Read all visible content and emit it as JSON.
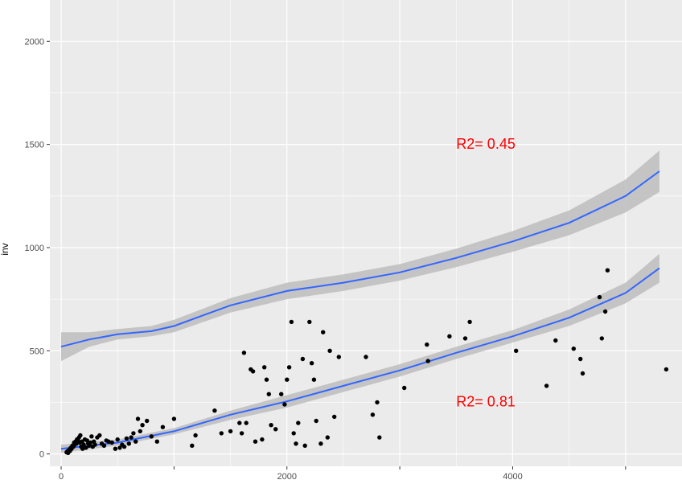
{
  "chart_data": {
    "type": "scatter",
    "title": "",
    "xlabel": "",
    "ylabel": "inv",
    "xlim": [
      -100,
      5500
    ],
    "ylim": [
      -60,
      2200
    ],
    "x_ticks": [
      0,
      1000,
      2000,
      3000,
      4000,
      5000
    ],
    "x_tick_labels": [
      "0",
      "",
      "2000",
      "",
      "4000",
      ""
    ],
    "y_ticks": [
      0,
      500,
      1000,
      1500,
      2000
    ],
    "y_tick_labels": [
      "0",
      "500",
      "1000",
      "1500",
      "2000"
    ],
    "grid": true,
    "colors": {
      "panel": "#ebebeb",
      "grid_major": "#ffffff",
      "points": "#000000",
      "smooth_line": "#3366ff",
      "ribbon": "#bdbdbd",
      "annotation": "#ff0000"
    },
    "points": [
      [
        48,
        8
      ],
      [
        55,
        12
      ],
      [
        62,
        5
      ],
      [
        70,
        20
      ],
      [
        78,
        15
      ],
      [
        85,
        30
      ],
      [
        92,
        25
      ],
      [
        100,
        40
      ],
      [
        108,
        35
      ],
      [
        115,
        55
      ],
      [
        120,
        45
      ],
      [
        128,
        60
      ],
      [
        135,
        50
      ],
      [
        140,
        70
      ],
      [
        150,
        65
      ],
      [
        158,
        80
      ],
      [
        165,
        55
      ],
      [
        170,
        90
      ],
      [
        178,
        35
      ],
      [
        185,
        60
      ],
      [
        190,
        25
      ],
      [
        200,
        45
      ],
      [
        210,
        70
      ],
      [
        220,
        30
      ],
      [
        230,
        65
      ],
      [
        240,
        50
      ],
      [
        250,
        40
      ],
      [
        260,
        55
      ],
      [
        270,
        85
      ],
      [
        280,
        35
      ],
      [
        290,
        60
      ],
      [
        300,
        45
      ],
      [
        320,
        80
      ],
      [
        340,
        90
      ],
      [
        360,
        50
      ],
      [
        380,
        40
      ],
      [
        400,
        65
      ],
      [
        420,
        60
      ],
      [
        450,
        55
      ],
      [
        480,
        25
      ],
      [
        500,
        70
      ],
      [
        520,
        30
      ],
      [
        540,
        45
      ],
      [
        560,
        35
      ],
      [
        580,
        75
      ],
      [
        600,
        50
      ],
      [
        620,
        80
      ],
      [
        640,
        100
      ],
      [
        660,
        60
      ],
      [
        680,
        170
      ],
      [
        700,
        110
      ],
      [
        720,
        140
      ],
      [
        760,
        160
      ],
      [
        800,
        85
      ],
      [
        850,
        60
      ],
      [
        900,
        130
      ],
      [
        1000,
        170
      ],
      [
        1160,
        40
      ],
      [
        1190,
        90
      ],
      [
        1360,
        210
      ],
      [
        1420,
        100
      ],
      [
        1500,
        110
      ],
      [
        1580,
        150
      ],
      [
        1600,
        100
      ],
      [
        1620,
        490
      ],
      [
        1640,
        150
      ],
      [
        1680,
        410
      ],
      [
        1700,
        400
      ],
      [
        1720,
        60
      ],
      [
        1780,
        70
      ],
      [
        1800,
        420
      ],
      [
        1820,
        360
      ],
      [
        1840,
        290
      ],
      [
        1860,
        140
      ],
      [
        1900,
        120
      ],
      [
        1950,
        290
      ],
      [
        1980,
        240
      ],
      [
        2000,
        360
      ],
      [
        2020,
        420
      ],
      [
        2040,
        640
      ],
      [
        2060,
        100
      ],
      [
        2080,
        50
      ],
      [
        2100,
        150
      ],
      [
        2140,
        460
      ],
      [
        2160,
        40
      ],
      [
        2200,
        640
      ],
      [
        2220,
        440
      ],
      [
        2240,
        360
      ],
      [
        2260,
        160
      ],
      [
        2300,
        50
      ],
      [
        2320,
        590
      ],
      [
        2360,
        80
      ],
      [
        2380,
        500
      ],
      [
        2420,
        180
      ],
      [
        2460,
        470
      ],
      [
        2700,
        470
      ],
      [
        2760,
        190
      ],
      [
        2800,
        250
      ],
      [
        2820,
        80
      ],
      [
        3040,
        320
      ],
      [
        3240,
        530
      ],
      [
        3250,
        450
      ],
      [
        3440,
        570
      ],
      [
        3580,
        560
      ],
      [
        3620,
        640
      ],
      [
        4030,
        500
      ],
      [
        4300,
        330
      ],
      [
        4380,
        550
      ],
      [
        4540,
        510
      ],
      [
        4600,
        460
      ],
      [
        4620,
        390
      ],
      [
        4770,
        760
      ],
      [
        4790,
        560
      ],
      [
        4820,
        690
      ],
      [
        4840,
        890
      ],
      [
        5360,
        410
      ]
    ],
    "series": [
      {
        "name": "lower smooth",
        "x": [
          0,
          500,
          1000,
          1500,
          2000,
          2500,
          3000,
          3500,
          4000,
          4500,
          5000,
          5300
        ],
        "y": [
          25,
          55,
          110,
          190,
          255,
          330,
          405,
          490,
          570,
          660,
          780,
          900
        ],
        "lower": [
          5,
          40,
          95,
          165,
          225,
          300,
          375,
          460,
          540,
          620,
          730,
          830
        ],
        "upper": [
          45,
          70,
          125,
          210,
          285,
          360,
          435,
          520,
          600,
          700,
          830,
          970
        ]
      },
      {
        "name": "upper smooth",
        "x": [
          0,
          250,
          500,
          800,
          1000,
          1500,
          2000,
          2500,
          3000,
          3500,
          4000,
          4500,
          5000,
          5300
        ],
        "y": [
          520,
          555,
          580,
          595,
          620,
          720,
          790,
          830,
          880,
          950,
          1030,
          1120,
          1250,
          1370
        ],
        "lower": [
          450,
          520,
          555,
          570,
          590,
          685,
          750,
          790,
          840,
          905,
          980,
          1060,
          1170,
          1270
        ],
        "upper": [
          590,
          590,
          605,
          620,
          650,
          755,
          830,
          870,
          920,
          995,
          1080,
          1180,
          1330,
          1470
        ]
      }
    ],
    "annotations": [
      {
        "text": "R2= 0.45",
        "x": 3500,
        "y": 1480,
        "color": "#ff0000"
      },
      {
        "text": "R2= 0.81",
        "x": 3500,
        "y": 230,
        "color": "#ff0000"
      }
    ]
  }
}
